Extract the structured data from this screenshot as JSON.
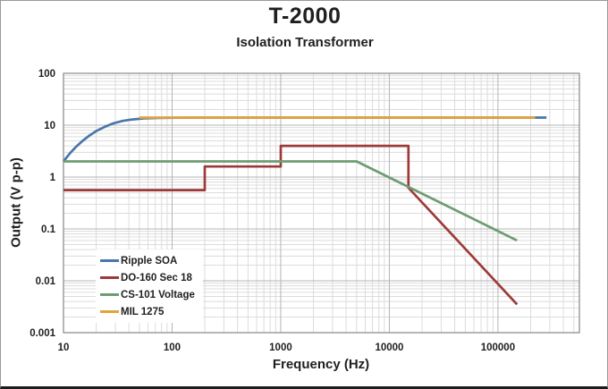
{
  "page": {
    "background": "#ffffff",
    "frame_border_color": "#9a9a9a",
    "frame_bottom_bar_color": "#1c1c1c"
  },
  "chart_data": {
    "type": "line",
    "title": "T-2000",
    "subtitle": "Isolation Transformer",
    "xlabel": "Frequency (Hz)",
    "ylabel": "Output (V p-p)",
    "x_scale": "log",
    "y_scale": "log",
    "x_range": [
      10,
      562000
    ],
    "y_range": [
      0.001,
      100
    ],
    "x_ticks": [
      {
        "label": "10",
        "value": 10
      },
      {
        "label": "100",
        "value": 100
      },
      {
        "label": "1000",
        "value": 1000
      },
      {
        "label": "10000",
        "value": 10000
      },
      {
        "label": "100000",
        "value": 100000
      }
    ],
    "y_ticks": [
      {
        "label": "100",
        "value": 100
      },
      {
        "label": "10",
        "value": 10
      },
      {
        "label": "1",
        "value": 1
      },
      {
        "label": "0.1",
        "value": 0.1
      },
      {
        "label": "0.01",
        "value": 0.01
      },
      {
        "label": "0.001",
        "value": 0.001
      }
    ],
    "grid": {
      "major": true,
      "minor": true,
      "major_color": "#b4b4b4",
      "minor_color": "#dcdcdc"
    },
    "plot_border_color": "#8f8f8f",
    "text_color": "#1f1f1f",
    "legend_position": "inside-lower-left",
    "series": [
      {
        "name": "Ripple SOA",
        "color": "#4a76a8",
        "points": [
          [
            10,
            2
          ],
          [
            11.5,
            2.9
          ],
          [
            13,
            3.8
          ],
          [
            15,
            5
          ],
          [
            17.5,
            6.4
          ],
          [
            20,
            7.7
          ],
          [
            24,
            9.3
          ],
          [
            29,
            10.9
          ],
          [
            35,
            12.1
          ],
          [
            43,
            12.9
          ],
          [
            55,
            13.5
          ],
          [
            75,
            13.8
          ],
          [
            110,
            13.95
          ],
          [
            200,
            14
          ],
          [
            280000,
            14
          ]
        ]
      },
      {
        "name": "DO-160 Sec 18",
        "color": "#9d3a39",
        "points": [
          [
            10,
            0.56
          ],
          [
            200,
            0.56
          ],
          [
            200,
            1.6
          ],
          [
            1000,
            1.6
          ],
          [
            1000,
            4
          ],
          [
            15000,
            4
          ],
          [
            15000,
            0.62
          ],
          [
            150000,
            0.0035
          ]
        ]
      },
      {
        "name": "CS-101 Voltage",
        "color": "#6e9c72",
        "points": [
          [
            10,
            2
          ],
          [
            5000,
            2
          ],
          [
            150000,
            0.06
          ]
        ]
      },
      {
        "name": "MIL 1275",
        "color": "#e2a33c",
        "points": [
          [
            50,
            14
          ],
          [
            220000,
            14
          ]
        ]
      }
    ]
  }
}
